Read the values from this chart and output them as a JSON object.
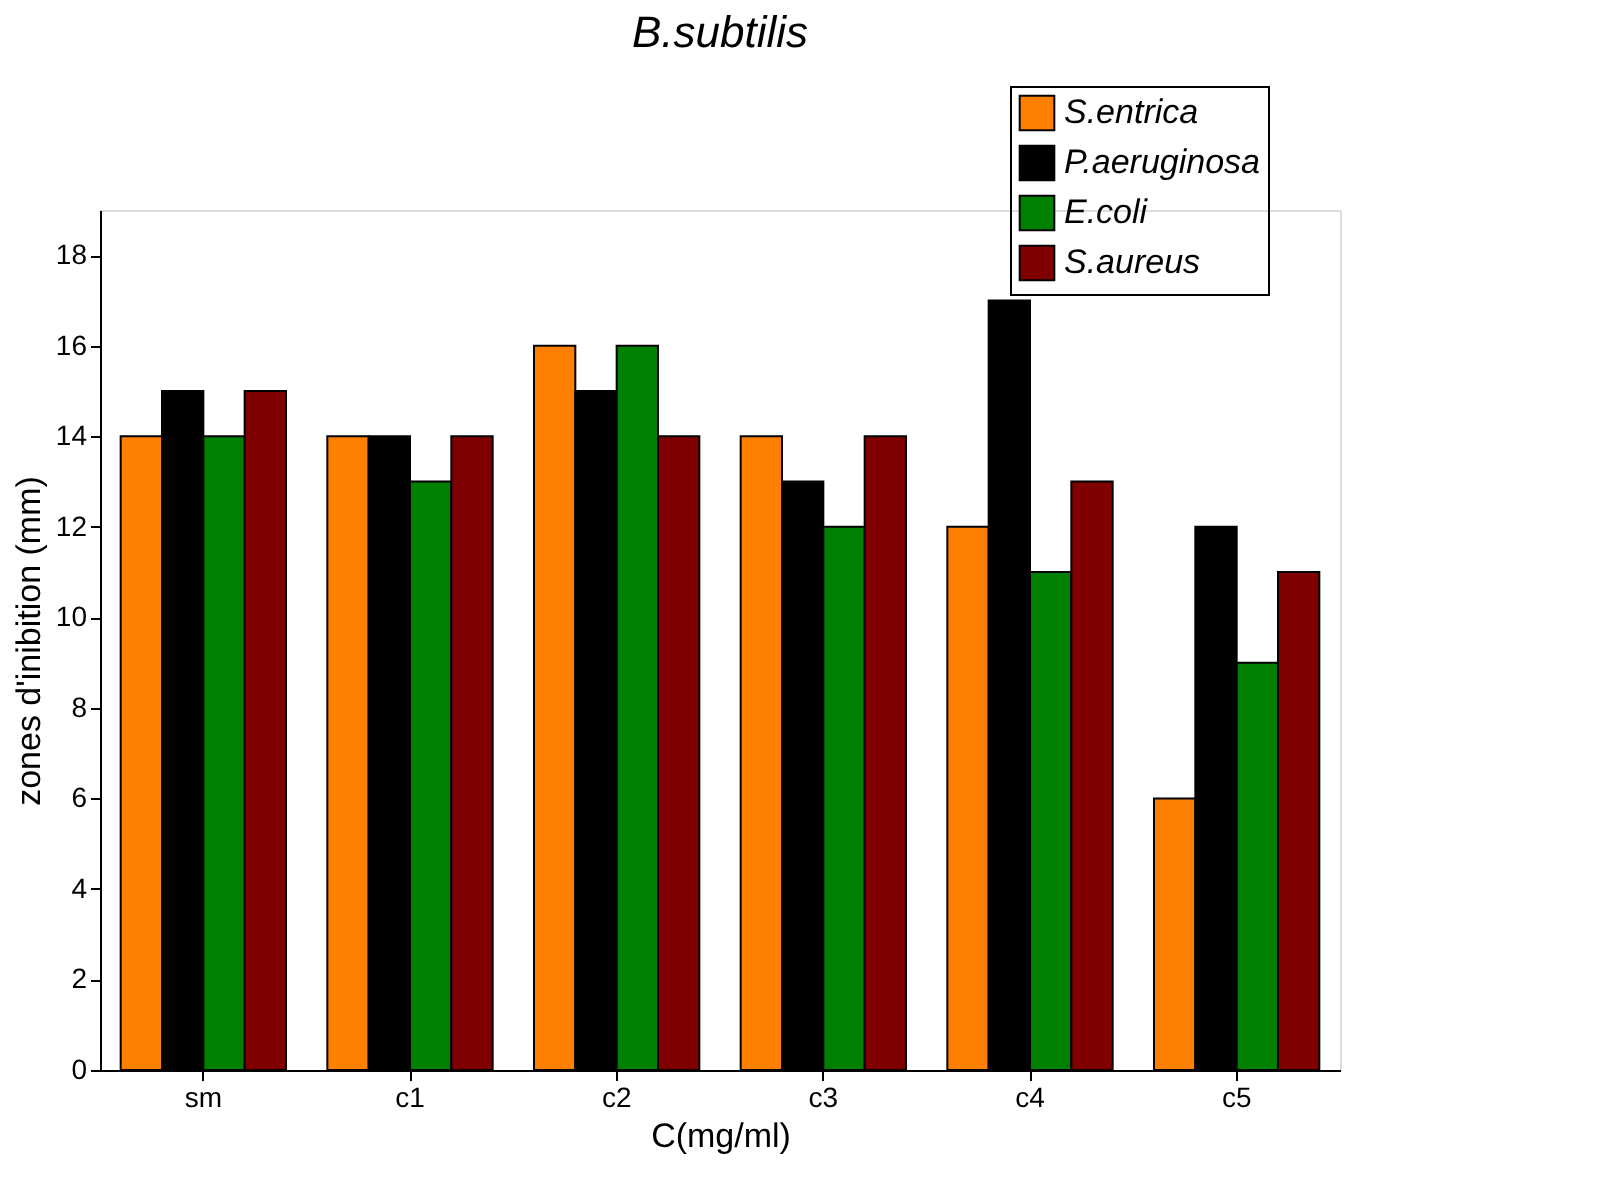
{
  "chart_data": {
    "type": "bar",
    "title": "B.subtilis",
    "xlabel": "C(mg/ml)",
    "ylabel": "zones d'inibition (mm)",
    "categories": [
      "sm",
      "c1",
      "c2",
      "c3",
      "c4",
      "c5"
    ],
    "series": [
      {
        "name": "S.entrica",
        "color": "#ff8000",
        "values": [
          14,
          14,
          16,
          14,
          12,
          6
        ]
      },
      {
        "name": "P.aeruginosa",
        "color": "#000000",
        "values": [
          15,
          14,
          15,
          13,
          17,
          12
        ]
      },
      {
        "name": "E.coli",
        "color": "#008000",
        "values": [
          14,
          13,
          16,
          12,
          11,
          9
        ]
      },
      {
        "name": "S.aureus",
        "color": "#800000",
        "values": [
          15,
          14,
          14,
          14,
          13,
          11
        ]
      }
    ],
    "ylim": [
      0,
      19
    ],
    "yticks": [
      0,
      2,
      4,
      6,
      8,
      10,
      12,
      14,
      16,
      18
    ],
    "grid": false,
    "legend": "top right"
  }
}
